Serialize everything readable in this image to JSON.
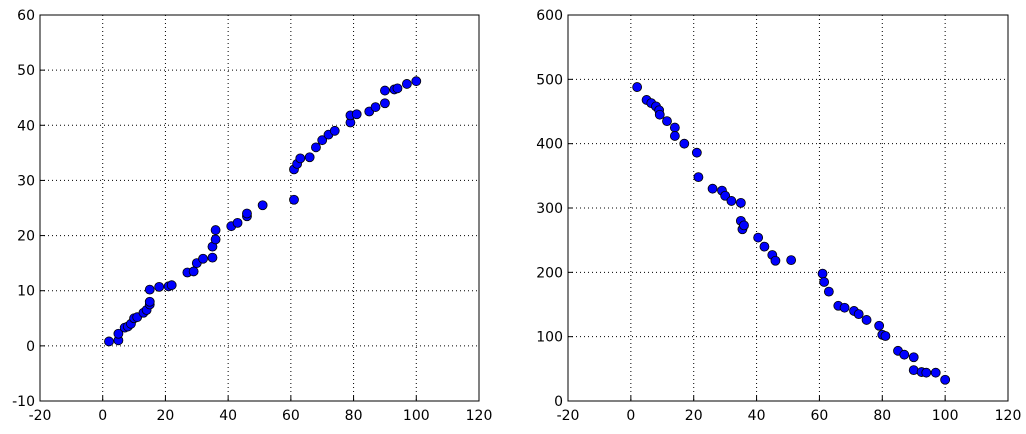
{
  "chart_data": [
    {
      "type": "scatter",
      "color": "#0000ff",
      "grid": true,
      "xlim": [
        -20,
        120
      ],
      "xticks": [
        -20,
        0,
        20,
        40,
        60,
        80,
        100,
        120
      ],
      "ylim": [
        -10,
        60
      ],
      "yticks": [
        -10,
        0,
        10,
        20,
        30,
        40,
        50,
        60
      ],
      "x": [
        2,
        5,
        5,
        7,
        8,
        9,
        10,
        11,
        13,
        14,
        15,
        15,
        15,
        18,
        21,
        22,
        27,
        29,
        30,
        32,
        35,
        35,
        36,
        36,
        41,
        43,
        46,
        46,
        51,
        61,
        61,
        62,
        63,
        66,
        68,
        70,
        72,
        74,
        79,
        79,
        81,
        85,
        87,
        90,
        90,
        93,
        94,
        97,
        100
      ],
      "values": [
        0.8,
        1,
        2.2,
        3.3,
        3.5,
        4,
        5,
        5.2,
        6,
        6.5,
        7.5,
        8,
        10.2,
        10.7,
        10.8,
        11,
        13.3,
        13.5,
        15,
        15.8,
        16,
        18,
        19.3,
        21,
        21.7,
        22.3,
        23.5,
        24,
        25.5,
        26.5,
        32,
        33,
        34,
        34.2,
        36,
        37.3,
        38.3,
        39,
        40.5,
        41.8,
        42,
        42.5,
        43.3,
        44,
        46.3,
        46.5,
        46.7,
        47.5,
        48
      ]
    },
    {
      "type": "scatter",
      "color": "#0000ff",
      "grid": true,
      "xlim": [
        -20,
        120
      ],
      "xticks": [
        -20,
        0,
        20,
        40,
        60,
        80,
        100,
        120
      ],
      "ylim": [
        0,
        600
      ],
      "yticks": [
        0,
        100,
        200,
        300,
        400,
        500,
        600
      ],
      "x": [
        2,
        5,
        6.5,
        8,
        9,
        9.2,
        11.5,
        14,
        14,
        17,
        21,
        21.5,
        26,
        29,
        30,
        32,
        35,
        35,
        35.5,
        36,
        40.5,
        42.5,
        45,
        46,
        51,
        61,
        61.5,
        63,
        66,
        68,
        71,
        72.5,
        75,
        79,
        80,
        81,
        85,
        87,
        90,
        90,
        92.5,
        94,
        97,
        100
      ],
      "values": [
        488,
        468,
        463,
        458,
        452,
        445,
        435,
        425,
        412,
        400,
        386,
        348,
        330,
        327,
        319,
        311,
        308,
        280,
        267,
        273,
        254,
        240,
        227,
        218,
        219,
        198,
        185,
        170,
        148,
        145,
        140,
        135,
        126,
        117,
        103,
        101,
        78,
        72,
        68,
        48,
        45,
        44,
        44,
        33
      ]
    }
  ]
}
